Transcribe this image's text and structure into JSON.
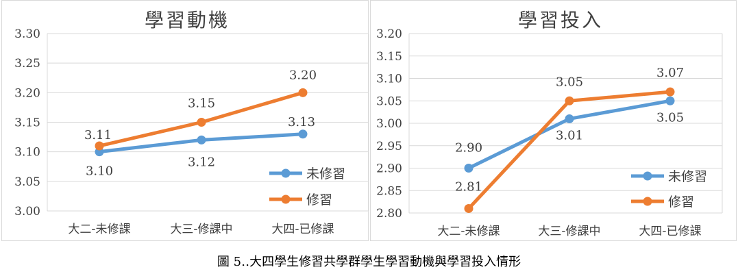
{
  "caption": "圖 5‥大四學生修習共學群學生學習動機與學習投入情形",
  "chart_data": [
    {
      "type": "line",
      "title": "學習動機",
      "categories": [
        "大二-未修課",
        "大三-修課中",
        "大四-已修課"
      ],
      "series": [
        {
          "name": "未修習",
          "values": [
            3.1,
            3.12,
            3.13
          ],
          "labels": [
            "3.10",
            "3.12",
            "3.13"
          ],
          "color": "#5B9BD5"
        },
        {
          "name": "修習",
          "values": [
            3.11,
            3.15,
            3.2
          ],
          "labels": [
            "3.11",
            "3.15",
            "3.20"
          ],
          "color": "#ED7D31"
        }
      ],
      "ylim": [
        3.0,
        3.3
      ],
      "yticks": [
        "3.00",
        "3.05",
        "3.10",
        "3.15",
        "3.20",
        "3.25",
        "3.30"
      ],
      "grid": true,
      "legend": "bottom-right"
    },
    {
      "type": "line",
      "title": "學習投入",
      "categories": [
        "大二-未修課",
        "大三-修課中",
        "大四-已修課"
      ],
      "series": [
        {
          "name": "未修習",
          "values": [
            2.9,
            3.01,
            3.05
          ],
          "labels": [
            "2.90",
            "3.01",
            "3.05"
          ],
          "color": "#5B9BD5"
        },
        {
          "name": "修習",
          "values": [
            2.81,
            3.05,
            3.07
          ],
          "labels": [
            "2.81",
            "3.05",
            "3.07"
          ],
          "color": "#ED7D31"
        }
      ],
      "ylim": [
        2.8,
        3.2
      ],
      "yticks": [
        "2.80",
        "2.85",
        "2.90",
        "2.95",
        "3.00",
        "3.05",
        "3.10",
        "3.15",
        "3.20"
      ],
      "grid": true,
      "legend": "bottom-right"
    }
  ]
}
